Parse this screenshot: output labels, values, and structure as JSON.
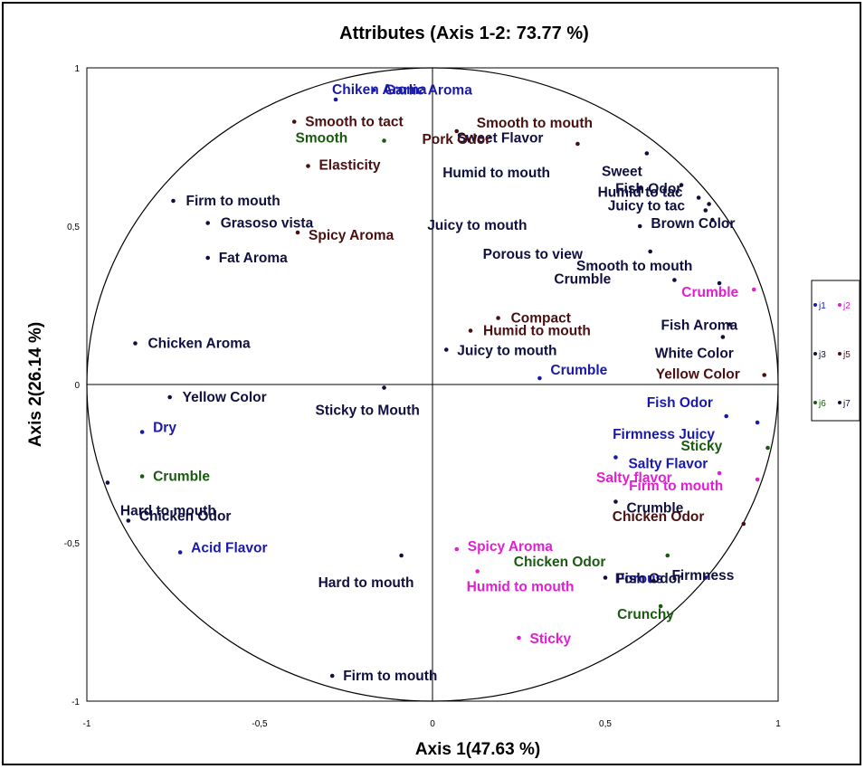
{
  "chart_data": {
    "type": "scatter",
    "title": "Attributes (Axis 1-2: 73.77 %)",
    "xlabel": "Axis 1(47.63 %)",
    "ylabel": "Axis 2(26.14 %)",
    "xlim": [
      -1,
      1
    ],
    "ylim": [
      -1,
      1
    ],
    "x_ticks": [
      "-1",
      "-0,5",
      "0",
      "0,5",
      "1"
    ],
    "y_ticks": [
      "1",
      "0,5",
      "0",
      "-0,5",
      "-1"
    ],
    "correlation_circle": true,
    "legend_position": "right",
    "series": [
      {
        "name": "j1",
        "color": "#1a1aaa",
        "points": [
          {
            "label": "Garlic Aroma",
            "x": -0.17,
            "y": 0.93
          },
          {
            "label": "Chiken Aroma",
            "x": -0.28,
            "y": 0.9
          },
          {
            "label": "Crumble",
            "x": 0.31,
            "y": 0.02
          },
          {
            "label": "Fish Odor",
            "x": 0.85,
            "y": -0.1
          },
          {
            "label": "Dry",
            "x": -0.84,
            "y": -0.15
          },
          {
            "label": "Firmness Juicy",
            "x": 0.94,
            "y": -0.12
          },
          {
            "label": "Salty Flavor",
            "x": 0.53,
            "y": -0.23
          },
          {
            "label": "Acid Flavor",
            "x": -0.73,
            "y": -0.53
          },
          {
            "label": "Porous",
            "x": 0.79,
            "y": -0.61
          }
        ]
      },
      {
        "name": "j2",
        "color": "#e020d0",
        "points": [
          {
            "label": "Crumble",
            "x": 0.93,
            "y": 0.3
          },
          {
            "label": "Salty flavor",
            "x": 0.83,
            "y": -0.28
          },
          {
            "label": "Firm to mouth",
            "x": 0.94,
            "y": -0.3
          },
          {
            "label": "Spicy Aroma",
            "x": 0.07,
            "y": -0.52
          },
          {
            "label": "Humid to mouth",
            "x": 0.13,
            "y": -0.59
          },
          {
            "label": "Sticky",
            "x": 0.25,
            "y": -0.8
          }
        ]
      },
      {
        "name": "j3",
        "color": "#101040",
        "points": [
          {
            "label": "Sweet Flavor",
            "x": 0.62,
            "y": 0.73
          },
          {
            "label": "Sweet",
            "x": 0.72,
            "y": 0.63
          },
          {
            "label": "Fish Odor",
            "x": 0.77,
            "y": 0.59
          },
          {
            "label": "Humid to tac",
            "x": 0.8,
            "y": 0.57
          },
          {
            "label": "Juicy to tac",
            "x": 0.79,
            "y": 0.55
          },
          {
            "label": "Brown Color",
            "x": 0.81,
            "y": 0.52
          },
          {
            "label": "Humid to mouth",
            "x": 0.6,
            "y": 0.62
          },
          {
            "label": "Juicy to mouth",
            "x": 0.6,
            "y": 0.5
          },
          {
            "label": "Porous to view",
            "x": 0.63,
            "y": 0.42
          },
          {
            "label": "Crumble",
            "x": 0.7,
            "y": 0.33
          },
          {
            "label": "Smooth to mouth",
            "x": 0.83,
            "y": 0.32
          },
          {
            "label": "Firm to mouth",
            "x": -0.75,
            "y": 0.58
          },
          {
            "label": "Grasoso vista",
            "x": -0.65,
            "y": 0.51
          },
          {
            "label": "Fat Aroma",
            "x": -0.65,
            "y": 0.4
          },
          {
            "label": "Chicken Aroma",
            "x": -0.86,
            "y": 0.13
          },
          {
            "label": "Yellow Color",
            "x": -0.76,
            "y": -0.04
          },
          {
            "label": "Sticky  to Mouth",
            "x": -0.14,
            "y": -0.01
          },
          {
            "label": "Juicy to mouth",
            "x": 0.04,
            "y": 0.11
          },
          {
            "label": "Fish Aroma",
            "x": 0.86,
            "y": 0.19
          },
          {
            "label": "White Color",
            "x": 0.84,
            "y": 0.15
          },
          {
            "label": "Hard to mouth",
            "x": -0.94,
            "y": -0.31
          },
          {
            "label": "Chicken Odor",
            "x": -0.88,
            "y": -0.43
          },
          {
            "label": "Hard to mouth",
            "x": -0.09,
            "y": -0.54
          },
          {
            "label": "Firm to mouth",
            "x": -0.29,
            "y": -0.92
          },
          {
            "label": "Fish Odor",
            "x": 0.5,
            "y": -0.61
          }
        ]
      },
      {
        "name": "j5",
        "color": "#4a1010",
        "points": [
          {
            "label": "Smooth to tact",
            "x": -0.4,
            "y": 0.83
          },
          {
            "label": "Elasticity",
            "x": -0.36,
            "y": 0.69
          },
          {
            "label": "Spicy Aroma",
            "x": -0.39,
            "y": 0.48
          },
          {
            "label": "Smooth to mouth",
            "x": 0.07,
            "y": 0.8
          },
          {
            "label": "Pork Odor",
            "x": 0.42,
            "y": 0.76
          },
          {
            "label": "Compact",
            "x": 0.19,
            "y": 0.21
          },
          {
            "label": "Humid to mouth",
            "x": 0.11,
            "y": 0.17
          },
          {
            "label": "Yellow Color",
            "x": 0.96,
            "y": 0.03
          },
          {
            "label": "Chicken Odor",
            "x": 0.9,
            "y": -0.44
          }
        ]
      },
      {
        "name": "j6",
        "color": "#1a5a10",
        "points": [
          {
            "label": "Smooth",
            "x": -0.14,
            "y": 0.77
          },
          {
            "label": "Crumble",
            "x": -0.84,
            "y": -0.29
          },
          {
            "label": "Sticky",
            "x": 0.97,
            "y": -0.2
          },
          {
            "label": "Chicken Odor",
            "x": 0.68,
            "y": -0.54
          },
          {
            "label": "Crunchy",
            "x": 0.66,
            "y": -0.7
          }
        ]
      },
      {
        "name": "j7",
        "color": "#101040",
        "points": [
          {
            "label": "Crumble",
            "x": 0.53,
            "y": -0.37
          },
          {
            "label": "Firmness",
            "x": 0.64,
            "y": -0.62
          }
        ]
      }
    ]
  }
}
